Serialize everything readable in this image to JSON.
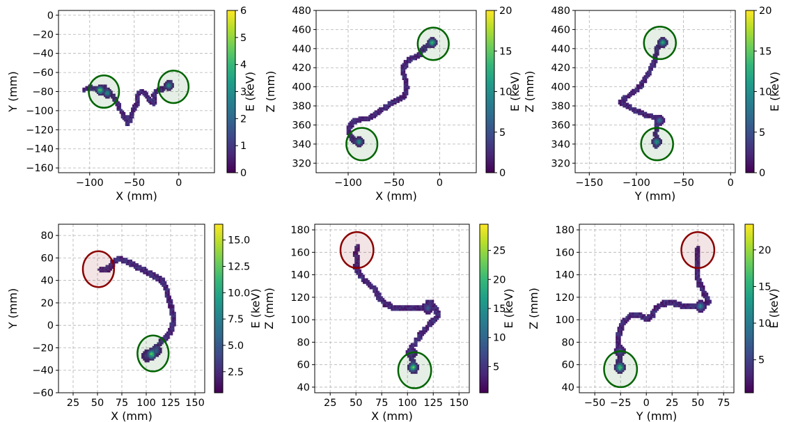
{
  "colors": {
    "viridis": [
      "#440154",
      "#482878",
      "#3e4989",
      "#31688e",
      "#26828e",
      "#1f9e89",
      "#35b779",
      "#6ece58",
      "#b5de2b",
      "#fde725"
    ],
    "green_circle": "#006400",
    "red_circle": "#8b0000"
  },
  "chart_data": [
    {
      "type": "heatmap",
      "xlabel": "X (mm)",
      "ylabel": "Y (mm)",
      "cblabel": "E (keV)",
      "xlim": [
        -135,
        40
      ],
      "ylim": [
        -165,
        5
      ],
      "xticks": [
        -100,
        -50,
        0
      ],
      "xtick_labels": [
        "−100",
        "−50",
        "0"
      ],
      "yticks": [
        -160,
        -140,
        -120,
        -100,
        -80,
        -60,
        -40,
        -20,
        0
      ],
      "ytick_labels": [
        "−160",
        "−140",
        "−120",
        "−100",
        "−80",
        "−60",
        "−40",
        "−20",
        "0"
      ],
      "clim": [
        0,
        6
      ],
      "cbticks": [
        0,
        1,
        2,
        3,
        4,
        5,
        6
      ],
      "cbtick_labels": [
        "0",
        "1",
        "2",
        "3",
        "4",
        "5",
        "6"
      ],
      "grid": true,
      "track": [
        [
          -106,
          -78
        ],
        [
          -100,
          -76
        ],
        [
          -92,
          -77
        ],
        [
          -84,
          -76
        ],
        [
          -78,
          -80
        ],
        [
          -73,
          -86
        ],
        [
          -69,
          -93
        ],
        [
          -66,
          -99
        ],
        [
          -63,
          -104
        ],
        [
          -60,
          -108
        ],
        [
          -57,
          -113
        ],
        [
          -55,
          -110
        ],
        [
          -53,
          -103
        ],
        [
          -50,
          -97
        ],
        [
          -47,
          -93
        ],
        [
          -47,
          -87
        ],
        [
          -45,
          -82
        ],
        [
          -41,
          -80
        ],
        [
          -37,
          -83
        ],
        [
          -34,
          -87
        ],
        [
          -31,
          -90
        ],
        [
          -27,
          -93
        ],
        [
          -27,
          -88
        ],
        [
          -29,
          -84
        ],
        [
          -25,
          -80
        ],
        [
          -20,
          -78
        ],
        [
          -15,
          -76
        ],
        [
          -11,
          -72
        ],
        [
          -9,
          -70
        ]
      ],
      "hotspots": [
        [
          -88,
          -78,
          5.5
        ],
        [
          -80,
          -82,
          3.5
        ],
        [
          -12,
          -73,
          3.5
        ]
      ],
      "circles": [
        {
          "x": -84,
          "y": -80,
          "r": 17,
          "color": "green"
        },
        {
          "x": -6,
          "y": -75,
          "r": 17,
          "color": "green"
        }
      ]
    },
    {
      "type": "heatmap",
      "xlabel": "X (mm)",
      "ylabel": "Z (mm)",
      "cblabel": "E (keV)",
      "xlim": [
        -135,
        40
      ],
      "ylim": [
        310,
        480
      ],
      "xticks": [
        -100,
        -50,
        0
      ],
      "xtick_labels": [
        "−100",
        "−50",
        "0"
      ],
      "yticks": [
        320,
        340,
        360,
        380,
        400,
        420,
        440,
        460,
        480
      ],
      "ytick_labels": [
        "320",
        "340",
        "360",
        "380",
        "400",
        "420",
        "440",
        "460",
        "480"
      ],
      "clim": [
        0,
        20
      ],
      "cbticks": [
        0,
        5,
        10,
        15,
        20
      ],
      "cbtick_labels": [
        "0",
        "5",
        "10",
        "15",
        "20"
      ],
      "grid": true,
      "track": [
        [
          -88,
          341
        ],
        [
          -93,
          343
        ],
        [
          -96,
          347
        ],
        [
          -100,
          352
        ],
        [
          -98,
          359
        ],
        [
          -93,
          364
        ],
        [
          -86,
          366
        ],
        [
          -78,
          367
        ],
        [
          -72,
          370
        ],
        [
          -66,
          374
        ],
        [
          -61,
          377
        ],
        [
          -55,
          381
        ],
        [
          -50,
          384
        ],
        [
          -44,
          387
        ],
        [
          -39,
          390
        ],
        [
          -36,
          398
        ],
        [
          -37,
          405
        ],
        [
          -39,
          412
        ],
        [
          -40,
          419
        ],
        [
          -37,
          424
        ],
        [
          -33,
          428
        ],
        [
          -28,
          431
        ],
        [
          -22,
          433
        ],
        [
          -19,
          438
        ],
        [
          -15,
          442
        ],
        [
          -10,
          445
        ],
        [
          -5,
          447
        ]
      ],
      "hotspots": [
        [
          -88,
          342,
          12
        ],
        [
          -8,
          446,
          16
        ]
      ],
      "circles": [
        {
          "x": -85,
          "y": 340,
          "r": 17,
          "color": "green"
        },
        {
          "x": -7,
          "y": 445,
          "r": 17,
          "color": "green"
        }
      ]
    },
    {
      "type": "heatmap",
      "xlabel": "Y (mm)",
      "ylabel": "Z (mm)",
      "cblabel": "E (keV)",
      "xlim": [
        -165,
        5
      ],
      "ylim": [
        310,
        480
      ],
      "xticks": [
        -150,
        -100,
        -50,
        0
      ],
      "xtick_labels": [
        "−150",
        "−100",
        "−50",
        "0"
      ],
      "yticks": [
        320,
        340,
        360,
        380,
        400,
        420,
        440,
        460,
        480
      ],
      "ytick_labels": [
        "320",
        "340",
        "360",
        "380",
        "400",
        "420",
        "440",
        "460",
        "480"
      ],
      "clim": [
        0,
        20
      ],
      "cbticks": [
        0,
        5,
        10,
        15,
        20
      ],
      "cbtick_labels": [
        "0",
        "5",
        "10",
        "15",
        "20"
      ],
      "grid": true,
      "track": [
        [
          -80,
          337
        ],
        [
          -78,
          344
        ],
        [
          -80,
          350
        ],
        [
          -78,
          356
        ],
        [
          -79,
          362
        ],
        [
          -75,
          366
        ],
        [
          -80,
          368
        ],
        [
          -88,
          370
        ],
        [
          -96,
          373
        ],
        [
          -103,
          376
        ],
        [
          -108,
          379
        ],
        [
          -113,
          381
        ],
        [
          -117,
          384
        ],
        [
          -112,
          388
        ],
        [
          -106,
          392
        ],
        [
          -100,
          397
        ],
        [
          -95,
          402
        ],
        [
          -91,
          408
        ],
        [
          -87,
          415
        ],
        [
          -83,
          421
        ],
        [
          -80,
          428
        ],
        [
          -79,
          434
        ],
        [
          -78,
          440
        ],
        [
          -74,
          445
        ],
        [
          -70,
          447
        ]
      ],
      "hotspots": [
        [
          -78,
          342,
          13
        ],
        [
          -76,
          364,
          9
        ],
        [
          -72,
          446,
          14
        ]
      ],
      "circles": [
        {
          "x": -78,
          "y": 340,
          "r": 17,
          "color": "green"
        },
        {
          "x": -75,
          "y": 446,
          "r": 17,
          "color": "green"
        }
      ]
    },
    {
      "type": "heatmap",
      "xlabel": "X (mm)",
      "ylabel": "Y (mm)",
      "cblabel": "E (keV)",
      "xlim": [
        10,
        160
      ],
      "ylim": [
        -60,
        90
      ],
      "xticks": [
        25,
        50,
        75,
        100,
        125,
        150
      ],
      "xtick_labels": [
        "25",
        "50",
        "75",
        "100",
        "125",
        "150"
      ],
      "yticks": [
        -60,
        -40,
        -20,
        0,
        20,
        40,
        60,
        80
      ],
      "ytick_labels": [
        "−60",
        "−40",
        "−20",
        "0",
        "20",
        "40",
        "60",
        "80"
      ],
      "clim": [
        0.5,
        16.5
      ],
      "cbticks": [
        2.5,
        5,
        7.5,
        10,
        12.5,
        15
      ],
      "cbtick_labels": [
        "2.5",
        "5.0",
        "7.5",
        "10.0",
        "12.5",
        "15.0"
      ],
      "grid": true,
      "track": [
        [
          53,
          49
        ],
        [
          58,
          49
        ],
        [
          63,
          52
        ],
        [
          67,
          57
        ],
        [
          72,
          59
        ],
        [
          78,
          58
        ],
        [
          84,
          55
        ],
        [
          91,
          52
        ],
        [
          98,
          49
        ],
        [
          104,
          46
        ],
        [
          110,
          43
        ],
        [
          115,
          41
        ],
        [
          118,
          37
        ],
        [
          121,
          32
        ],
        [
          122,
          26
        ],
        [
          125,
          20
        ],
        [
          127,
          13
        ],
        [
          128,
          6
        ],
        [
          127,
          0
        ],
        [
          125,
          -6
        ],
        [
          121,
          -11
        ],
        [
          116,
          -14
        ],
        [
          112,
          -17
        ],
        [
          108,
          -21
        ],
        [
          105,
          -26
        ]
      ],
      "hotspots": [
        [
          106,
          -26,
          16
        ],
        [
          110,
          -22,
          6
        ],
        [
          100,
          -28,
          4
        ]
      ],
      "circles": [
        {
          "x": 51,
          "y": 50,
          "r": 16,
          "color": "red"
        },
        {
          "x": 107,
          "y": -25,
          "r": 16,
          "color": "green"
        }
      ]
    },
    {
      "type": "heatmap",
      "xlabel": "X (mm)",
      "ylabel": "Z (mm)",
      "cblabel": "E (keV)",
      "xlim": [
        10,
        160
      ],
      "ylim": [
        35,
        185
      ],
      "xticks": [
        25,
        50,
        75,
        100,
        125,
        150
      ],
      "xtick_labels": [
        "25",
        "50",
        "75",
        "100",
        "125",
        "150"
      ],
      "yticks": [
        40,
        60,
        80,
        100,
        120,
        140,
        160,
        180
      ],
      "ytick_labels": [
        "40",
        "60",
        "80",
        "100",
        "120",
        "140",
        "160",
        "180"
      ],
      "clim": [
        0.5,
        29.5
      ],
      "cbticks": [
        5,
        10,
        15,
        20,
        25
      ],
      "cbtick_labels": [
        "5",
        "10",
        "15",
        "20",
        "25"
      ],
      "grid": true,
      "track": [
        [
          51,
          165
        ],
        [
          50,
          158
        ],
        [
          51,
          152
        ],
        [
          50,
          146
        ],
        [
          54,
          140
        ],
        [
          59,
          135
        ],
        [
          64,
          131
        ],
        [
          68,
          127
        ],
        [
          72,
          121
        ],
        [
          76,
          116
        ],
        [
          81,
          113
        ],
        [
          87,
          110
        ],
        [
          95,
          110
        ],
        [
          102,
          110
        ],
        [
          110,
          110
        ],
        [
          117,
          112
        ],
        [
          121,
          116
        ],
        [
          124,
          114
        ],
        [
          127,
          110
        ],
        [
          130,
          104
        ],
        [
          126,
          100
        ],
        [
          121,
          96
        ],
        [
          116,
          90
        ],
        [
          112,
          85
        ],
        [
          108,
          80
        ],
        [
          104,
          75
        ],
        [
          103,
          70
        ],
        [
          105,
          64
        ],
        [
          107,
          58
        ],
        [
          108,
          55
        ]
      ],
      "hotspots": [
        [
          106,
          58,
          25
        ],
        [
          104,
          70,
          8
        ],
        [
          120,
          110,
          10
        ]
      ],
      "circles": [
        {
          "x": 51,
          "y": 162,
          "r": 16,
          "color": "red"
        },
        {
          "x": 107,
          "y": 55,
          "r": 16,
          "color": "green"
        }
      ]
    },
    {
      "type": "heatmap",
      "xlabel": "Y (mm)",
      "ylabel": "Z (mm)",
      "cblabel": "E (keV)",
      "xlim": [
        -65,
        85
      ],
      "ylim": [
        35,
        185
      ],
      "xticks": [
        -50,
        -25,
        0,
        25,
        50,
        75
      ],
      "xtick_labels": [
        "−50",
        "−25",
        "0",
        "25",
        "50",
        "75"
      ],
      "yticks": [
        40,
        60,
        80,
        100,
        120,
        140,
        160,
        180
      ],
      "ytick_labels": [
        "40",
        "60",
        "80",
        "100",
        "120",
        "140",
        "160",
        "180"
      ],
      "clim": [
        0.5,
        23.5
      ],
      "cbticks": [
        5,
        10,
        15,
        20
      ],
      "cbtick_labels": [
        "5",
        "10",
        "15",
        "20"
      ],
      "grid": true,
      "track": [
        [
          -25,
          56
        ],
        [
          -27,
          62
        ],
        [
          -25,
          68
        ],
        [
          -27,
          74
        ],
        [
          -28,
          80
        ],
        [
          -27,
          86
        ],
        [
          -25,
          92
        ],
        [
          -22,
          98
        ],
        [
          -15,
          104
        ],
        [
          -7,
          104
        ],
        [
          0,
          101
        ],
        [
          6,
          104
        ],
        [
          10,
          110
        ],
        [
          16,
          114
        ],
        [
          24,
          116
        ],
        [
          32,
          113
        ],
        [
          40,
          112
        ],
        [
          47,
          112
        ],
        [
          55,
          112
        ],
        [
          60,
          116
        ],
        [
          58,
          121
        ],
        [
          55,
          126
        ],
        [
          52,
          131
        ],
        [
          50,
          138
        ],
        [
          49,
          146
        ],
        [
          50,
          155
        ],
        [
          49,
          163
        ]
      ],
      "hotspots": [
        [
          -25,
          58,
          21
        ],
        [
          -26,
          72,
          8
        ],
        [
          52,
          112,
          12
        ]
      ],
      "circles": [
        {
          "x": -25,
          "y": 56,
          "r": 16,
          "color": "green"
        },
        {
          "x": 50,
          "y": 162,
          "r": 16,
          "color": "red"
        }
      ]
    }
  ]
}
